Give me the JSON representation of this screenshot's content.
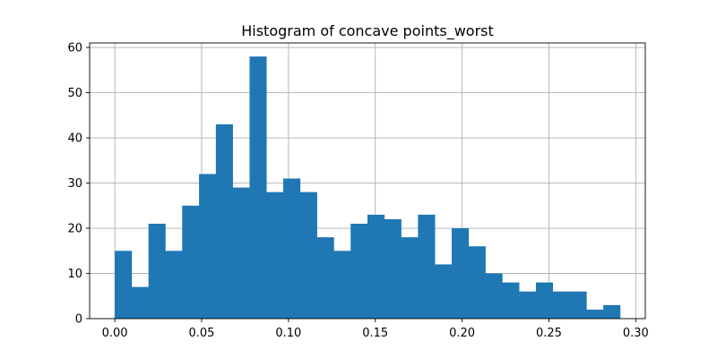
{
  "chart_data": {
    "type": "bar",
    "title": "Histogram of concave points_worst",
    "xlabel": "",
    "ylabel": "",
    "xlim": [
      -0.0145,
      0.3055
    ],
    "ylim": [
      0,
      61
    ],
    "grid": true,
    "bar_color": "#1f77b4",
    "bin_width": 0.0097,
    "bin_edges_start": 0.0,
    "values": [
      15,
      7,
      21,
      15,
      25,
      32,
      43,
      29,
      58,
      28,
      31,
      28,
      18,
      15,
      21,
      23,
      22,
      18,
      23,
      12,
      20,
      16,
      10,
      8,
      6,
      8,
      6,
      6,
      2,
      3
    ],
    "x_ticks": [
      {
        "value": 0.0,
        "label": "0.00"
      },
      {
        "value": 0.05,
        "label": "0.05"
      },
      {
        "value": 0.1,
        "label": "0.10"
      },
      {
        "value": 0.15,
        "label": "0.15"
      },
      {
        "value": 0.2,
        "label": "0.20"
      },
      {
        "value": 0.25,
        "label": "0.25"
      },
      {
        "value": 0.3,
        "label": "0.30"
      }
    ],
    "y_ticks": [
      {
        "value": 0,
        "label": "0"
      },
      {
        "value": 10,
        "label": "10"
      },
      {
        "value": 20,
        "label": "20"
      },
      {
        "value": 30,
        "label": "30"
      },
      {
        "value": 40,
        "label": "40"
      },
      {
        "value": 50,
        "label": "50"
      },
      {
        "value": 60,
        "label": "60"
      }
    ]
  }
}
